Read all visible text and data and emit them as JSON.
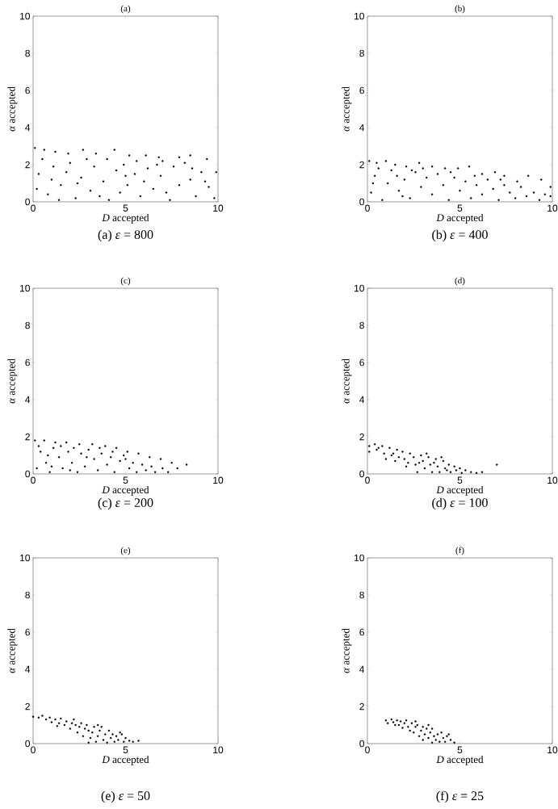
{
  "chart_data": [
    {
      "type": "scatter",
      "title": "(a)",
      "xlabel": "*D* accepted",
      "ylabel": "*α* accepted",
      "annotations": [
        "(a) *ε* = 800"
      ],
      "xlim": [
        0,
        10
      ],
      "ylim": [
        0,
        10
      ],
      "xticks": [
        0,
        5,
        10
      ],
      "yticks": [
        0,
        2,
        4,
        6,
        8,
        10
      ],
      "series": [
        {
          "color": "#000000",
          "x": [
            0.1,
            0.6,
            1.2,
            1.9,
            2.7,
            3.4,
            4.4,
            5.2,
            6.1,
            6.8,
            7.9,
            8.5,
            9.4,
            0.3,
            0.8,
            1.1,
            1.5,
            2.0,
            2.3,
            2.6,
            3.1,
            3.3,
            3.8,
            4.1,
            4.5,
            4.9,
            5.1,
            5.5,
            5.8,
            6.2,
            6.5,
            6.9,
            7.2,
            7.6,
            7.9,
            8.2,
            8.5,
            8.8,
            9.1,
            9.5,
            9.9,
            9.8,
            0.5,
            1.4,
            2.9,
            4.0,
            5.6,
            7.0,
            0.2,
            1.8,
            3.6,
            4.7,
            6.0,
            7.4,
            8.6,
            9.3,
            1.0,
            2.4,
            5.0,
            6.7
          ],
          "values": [
            2.9,
            2.8,
            2.7,
            2.6,
            2.8,
            2.6,
            2.8,
            2.5,
            2.5,
            2.4,
            2.4,
            2.5,
            2.3,
            1.5,
            0.4,
            1.9,
            0.9,
            2.1,
            0.2,
            1.3,
            0.6,
            1.9,
            1.1,
            0.1,
            1.7,
            2.0,
            0.9,
            1.5,
            0.3,
            1.8,
            0.7,
            1.4,
            0.5,
            1.9,
            0.9,
            2.1,
            1.2,
            0.3,
            1.6,
            0.8,
            1.6,
            0.2,
            2.3,
            0.1,
            2.3,
            2.3,
            2.2,
            2.2,
            0.7,
            1.6,
            0.3,
            0.5,
            1.1,
            0.1,
            1.8,
            1.1,
            1.2,
            1.0,
            1.4,
            2.0
          ]
        }
      ]
    },
    {
      "type": "scatter",
      "title": "(b)",
      "xlabel": "*D* accepted",
      "ylabel": "*α* accepted",
      "annotations": [
        "(b) *ε* = 400"
      ],
      "xlim": [
        0,
        10
      ],
      "ylim": [
        0,
        10
      ],
      "xticks": [
        0,
        5,
        10
      ],
      "yticks": [
        0,
        2,
        4,
        6,
        8,
        10
      ],
      "series": [
        {
          "color": "#000000",
          "x": [
            0.1,
            0.5,
            1.0,
            1.5,
            2.1,
            2.8,
            3.5,
            4.2,
            4.9,
            5.5,
            6.2,
            6.9,
            7.4,
            8.1,
            8.7,
            9.4,
            9.9,
            0.2,
            0.4,
            0.8,
            1.1,
            1.3,
            1.7,
            2.0,
            2.3,
            2.6,
            2.9,
            3.2,
            3.5,
            3.8,
            4.1,
            4.4,
            4.7,
            5.0,
            5.3,
            5.6,
            5.9,
            6.2,
            6.5,
            6.8,
            7.1,
            7.4,
            7.7,
            8.0,
            8.3,
            8.6,
            9.0,
            9.3,
            9.6,
            9.9,
            0.6,
            1.6,
            2.4,
            3.0,
            4.5,
            5.8,
            7.2,
            0.3,
            1.9
          ],
          "values": [
            2.2,
            2.1,
            2.2,
            2.0,
            1.9,
            2.1,
            1.9,
            1.8,
            1.8,
            1.9,
            1.5,
            1.6,
            1.4,
            1.1,
            1.4,
            1.2,
            0.8,
            0.5,
            1.4,
            0.1,
            1.0,
            1.7,
            0.6,
            1.2,
            0.2,
            1.6,
            0.8,
            1.3,
            0.4,
            1.5,
            0.9,
            0.1,
            1.3,
            0.6,
            1.1,
            0.2,
            0.9,
            0.4,
            1.2,
            0.7,
            0.1,
            0.9,
            0.5,
            0.2,
            0.8,
            0.3,
            0.5,
            0.1,
            0.4,
            0.3,
            1.8,
            1.4,
            1.7,
            1.8,
            1.6,
            1.4,
            1.2,
            1.0,
            0.3
          ]
        }
      ]
    },
    {
      "type": "scatter",
      "title": "(c)",
      "xlabel": "*D* accepted",
      "ylabel": "*α* accepted",
      "annotations": [
        "(c) *ε* = 200"
      ],
      "xlim": [
        0,
        10
      ],
      "ylim": [
        0,
        10
      ],
      "xticks": [
        0,
        5,
        10
      ],
      "yticks": [
        0,
        2,
        4,
        6,
        8,
        10
      ],
      "series": [
        {
          "color": "#000000",
          "x": [
            0.1,
            0.6,
            1.2,
            1.8,
            2.5,
            3.2,
            3.9,
            4.5,
            5.1,
            5.7,
            6.3,
            6.9,
            7.5,
            8.3,
            0.2,
            0.4,
            0.7,
            0.9,
            1.1,
            1.4,
            1.6,
            1.9,
            2.1,
            2.4,
            2.6,
            2.8,
            3.0,
            3.3,
            3.5,
            3.7,
            4.0,
            4.2,
            4.4,
            4.7,
            4.9,
            5.2,
            5.4,
            5.6,
            5.9,
            6.1,
            6.4,
            6.6,
            7.0,
            7.3,
            7.8,
            0.3,
            0.8,
            1.5,
            2.2,
            2.9,
            3.6,
            4.3,
            5.0,
            1.0,
            2.0
          ],
          "values": [
            1.8,
            1.8,
            1.7,
            1.7,
            1.6,
            1.6,
            1.5,
            1.4,
            1.2,
            1.1,
            0.9,
            0.8,
            0.6,
            0.5,
            0.3,
            1.2,
            0.6,
            0.1,
            1.4,
            0.9,
            0.3,
            1.2,
            0.6,
            0.1,
            1.1,
            0.4,
            1.3,
            0.8,
            0.2,
            1.1,
            0.5,
            0.9,
            0.1,
            0.7,
            1.0,
            0.3,
            0.6,
            0.1,
            0.5,
            0.2,
            0.4,
            0.1,
            0.3,
            0.1,
            0.3,
            1.5,
            1.0,
            1.5,
            1.4,
            0.9,
            1.4,
            1.2,
            0.8,
            0.4,
            0.2
          ]
        }
      ]
    },
    {
      "type": "scatter",
      "title": "(d)",
      "xlabel": "*D* accepted",
      "ylabel": "*α* accepted",
      "annotations": [
        "(d) *ε* = 100"
      ],
      "xlim": [
        0,
        10
      ],
      "ylim": [
        0,
        10
      ],
      "xticks": [
        0,
        5,
        10
      ],
      "yticks": [
        0,
        2,
        4,
        6,
        8,
        10
      ],
      "series": [
        {
          "color": "#000000",
          "x": [
            0.1,
            0.1,
            0.4,
            0.5,
            0.8,
            0.9,
            1.2,
            1.3,
            1.5,
            1.6,
            1.9,
            2.0,
            2.1,
            2.3,
            2.5,
            2.6,
            2.7,
            2.9,
            3.0,
            3.1,
            3.3,
            3.4,
            3.5,
            3.7,
            3.8,
            3.9,
            4.1,
            4.2,
            4.4,
            4.5,
            4.7,
            4.8,
            5.0,
            5.1,
            5.3,
            5.6,
            5.9,
            6.2,
            7.0,
            1.0,
            1.7,
            2.2,
            2.8,
            3.6,
            4.3,
            1.4,
            0.6,
            4.0,
            3.2
          ],
          "values": [
            1.5,
            1.2,
            1.6,
            1.3,
            1.5,
            1.1,
            1.4,
            1.0,
            0.7,
            1.3,
            1.2,
            0.8,
            0.4,
            1.1,
            0.9,
            0.5,
            0.1,
            1.0,
            0.7,
            0.3,
            0.9,
            0.5,
            0.1,
            0.8,
            0.4,
            0.1,
            0.7,
            0.3,
            0.5,
            0.1,
            0.4,
            0.2,
            0.3,
            0.05,
            0.2,
            0.1,
            0.05,
            0.1,
            0.5,
            0.8,
            0.9,
            0.6,
            0.6,
            0.6,
            0.2,
            1.1,
            1.4,
            0.9,
            1.1
          ]
        }
      ]
    },
    {
      "type": "scatter",
      "title": "(e)",
      "xlabel": "*D* accepted",
      "ylabel": "*α* accepted",
      "annotations": [
        "(e) *ε* = 50"
      ],
      "xlim": [
        0,
        10
      ],
      "ylim": [
        0,
        10
      ],
      "xticks": [
        0,
        5,
        10
      ],
      "yticks": [
        0,
        2,
        4,
        6,
        8,
        10
      ],
      "series": [
        {
          "color": "#000000",
          "x": [
            0.0,
            0.3,
            0.5,
            0.7,
            0.9,
            1.0,
            1.2,
            1.4,
            1.5,
            1.7,
            1.8,
            2.0,
            2.1,
            2.2,
            2.4,
            2.5,
            2.6,
            2.7,
            2.8,
            2.9,
            3.0,
            3.1,
            3.2,
            3.3,
            3.4,
            3.5,
            3.6,
            3.7,
            3.8,
            3.9,
            4.0,
            4.1,
            4.2,
            4.3,
            4.4,
            4.5,
            4.6,
            4.8,
            4.9,
            5.0,
            5.2,
            5.4,
            5.7,
            1.3,
            2.3,
            3.0,
            3.5,
            4.7
          ],
          "values": [
            1.45,
            1.4,
            1.5,
            1.3,
            1.4,
            1.15,
            1.3,
            1.1,
            1.35,
            1.0,
            1.2,
            0.8,
            1.1,
            1.3,
            0.6,
            0.9,
            1.1,
            0.4,
            0.8,
            1.0,
            0.05,
            0.3,
            0.6,
            0.9,
            0.1,
            0.4,
            0.7,
            0.9,
            0.2,
            0.5,
            0.05,
            0.7,
            0.3,
            0.5,
            0.1,
            0.4,
            0.2,
            0.5,
            0.1,
            0.3,
            0.15,
            0.1,
            0.15,
            0.95,
            1.0,
            0.7,
            1.0,
            0.6
          ]
        }
      ]
    },
    {
      "type": "scatter",
      "title": "(f)",
      "xlabel": "*D* accepted",
      "ylabel": "*α* accepted",
      "annotations": [
        "(f) *ε* = 25"
      ],
      "xlim": [
        0,
        10
      ],
      "ylim": [
        0,
        10
      ],
      "xticks": [
        0,
        5,
        10
      ],
      "yticks": [
        0,
        2,
        4,
        6,
        8,
        10
      ],
      "series": [
        {
          "color": "#000000",
          "x": [
            1.0,
            1.1,
            1.3,
            1.4,
            1.6,
            1.7,
            1.8,
            1.9,
            2.0,
            2.1,
            2.2,
            2.3,
            2.4,
            2.5,
            2.6,
            2.7,
            2.8,
            2.9,
            3.0,
            3.0,
            3.1,
            3.2,
            3.3,
            3.4,
            3.5,
            3.5,
            3.6,
            3.7,
            3.8,
            3.9,
            4.0,
            4.1,
            4.2,
            4.3,
            4.5,
            4.7,
            3.3,
            2.6,
            1.5,
            4.4
          ],
          "values": [
            1.25,
            1.1,
            1.3,
            1.15,
            1.25,
            1.0,
            1.2,
            0.85,
            1.1,
            1.25,
            0.9,
            0.7,
            1.1,
            0.6,
            0.9,
            1.0,
            0.4,
            0.7,
            0.9,
            0.2,
            0.5,
            0.8,
            0.3,
            0.6,
            0.05,
            0.8,
            0.4,
            0.2,
            0.5,
            0.1,
            0.6,
            0.3,
            0.1,
            0.4,
            0.2,
            0.05,
            1.0,
            1.2,
            1.0,
            0.5
          ]
        }
      ]
    }
  ]
}
